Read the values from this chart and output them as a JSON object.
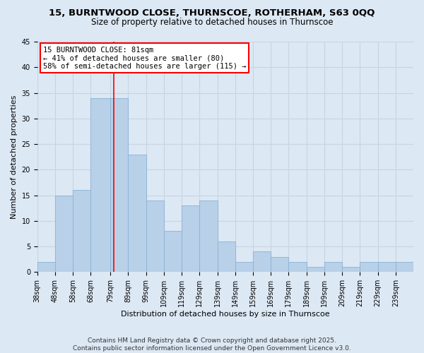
{
  "title_line1": "15, BURNTWOOD CLOSE, THURNSCOE, ROTHERHAM, S63 0QQ",
  "title_line2": "Size of property relative to detached houses in Thurnscoe",
  "xlabel": "Distribution of detached houses by size in Thurnscoe",
  "ylabel": "Number of detached properties",
  "bin_labels": [
    "38sqm",
    "48sqm",
    "58sqm",
    "68sqm",
    "79sqm",
    "89sqm",
    "99sqm",
    "109sqm",
    "119sqm",
    "129sqm",
    "139sqm",
    "149sqm",
    "159sqm",
    "169sqm",
    "179sqm",
    "189sqm",
    "199sqm",
    "209sqm",
    "219sqm",
    "229sqm",
    "239sqm"
  ],
  "bin_edges": [
    38,
    48,
    58,
    68,
    79,
    89,
    99,
    109,
    119,
    129,
    139,
    149,
    159,
    169,
    179,
    189,
    199,
    209,
    219,
    229,
    239,
    249
  ],
  "bar_heights": [
    2,
    15,
    16,
    34,
    34,
    23,
    14,
    8,
    13,
    14,
    6,
    2,
    4,
    3,
    2,
    1,
    2,
    1,
    2,
    2,
    2
  ],
  "bar_color": "#b8d0e8",
  "bar_edge_color": "#8ab4d4",
  "vline_x": 81,
  "vline_color": "red",
  "annotation_text": "15 BURNTWOOD CLOSE: 81sqm\n← 41% of detached houses are smaller (80)\n58% of semi-detached houses are larger (115) →",
  "annotation_box_color": "white",
  "annotation_box_edge_color": "red",
  "ylim": [
    0,
    45
  ],
  "yticks": [
    0,
    5,
    10,
    15,
    20,
    25,
    30,
    35,
    40,
    45
  ],
  "grid_color": "#c8d4e0",
  "bg_color": "#dce8f4",
  "footer_line1": "Contains HM Land Registry data © Crown copyright and database right 2025.",
  "footer_line2": "Contains public sector information licensed under the Open Government Licence v3.0.",
  "title_fontsize": 9.5,
  "subtitle_fontsize": 8.5,
  "axis_label_fontsize": 8,
  "tick_fontsize": 7,
  "annotation_fontsize": 7.5,
  "footer_fontsize": 6.5
}
